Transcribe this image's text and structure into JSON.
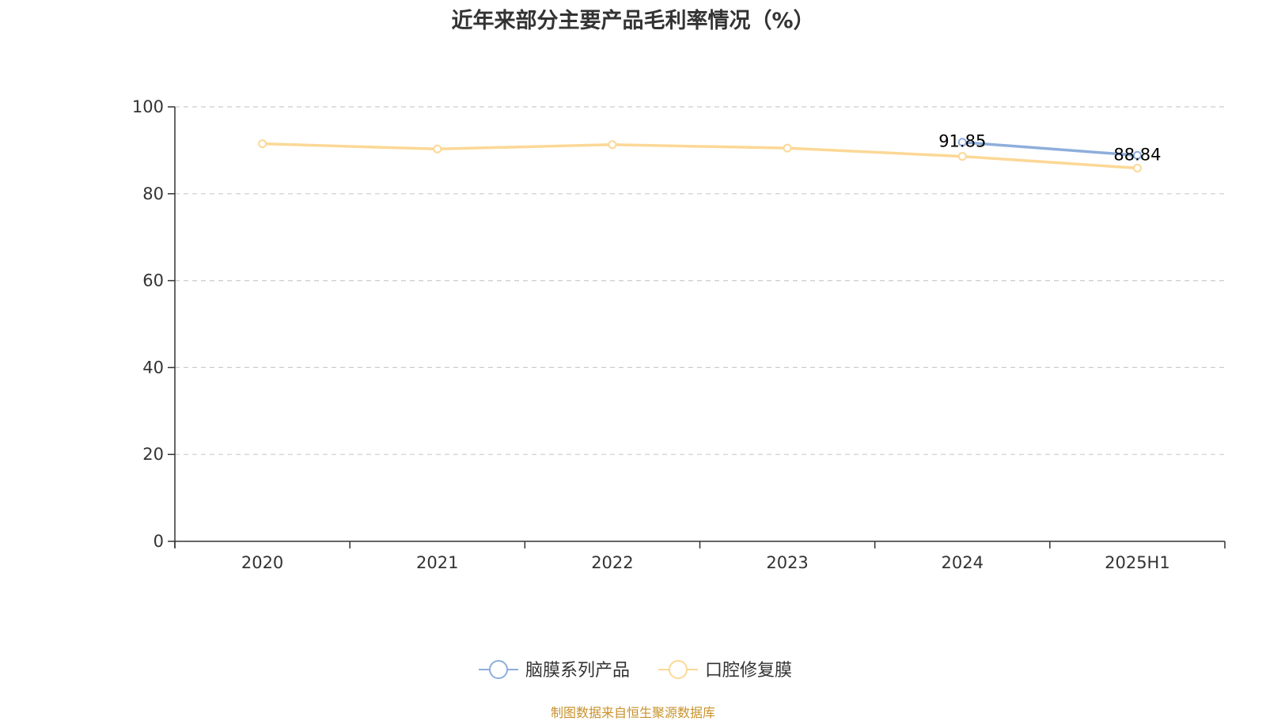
{
  "colors": {
    "series_1": "#8eaedb",
    "series_2": "#fcd896",
    "axis": "#333333",
    "grid": "#cccccc",
    "source": "#c8922a"
  },
  "chart_data": {
    "type": "line",
    "title": "近年来部分主要产品毛利率情况（%）",
    "xlabel": "",
    "ylabel": "",
    "categories": [
      "2020",
      "2021",
      "2022",
      "2023",
      "2024",
      "2025H1"
    ],
    "ylim": [
      0,
      100
    ],
    "yticks": [
      0,
      20,
      40,
      60,
      80,
      100
    ],
    "grid": true,
    "legend_position": "bottom-center",
    "series": [
      {
        "name": "脑膜系列产品",
        "values": [
          null,
          null,
          null,
          null,
          91.85,
          88.84
        ],
        "labels": [
          null,
          null,
          null,
          null,
          "91.85",
          "88.84"
        ]
      },
      {
        "name": "口腔修复膜",
        "values": [
          91.5,
          90.3,
          91.3,
          90.5,
          88.6,
          85.9
        ],
        "labels": [
          null,
          null,
          null,
          null,
          null,
          null
        ]
      }
    ]
  },
  "source_note": "制图数据来自恒生聚源数据库"
}
